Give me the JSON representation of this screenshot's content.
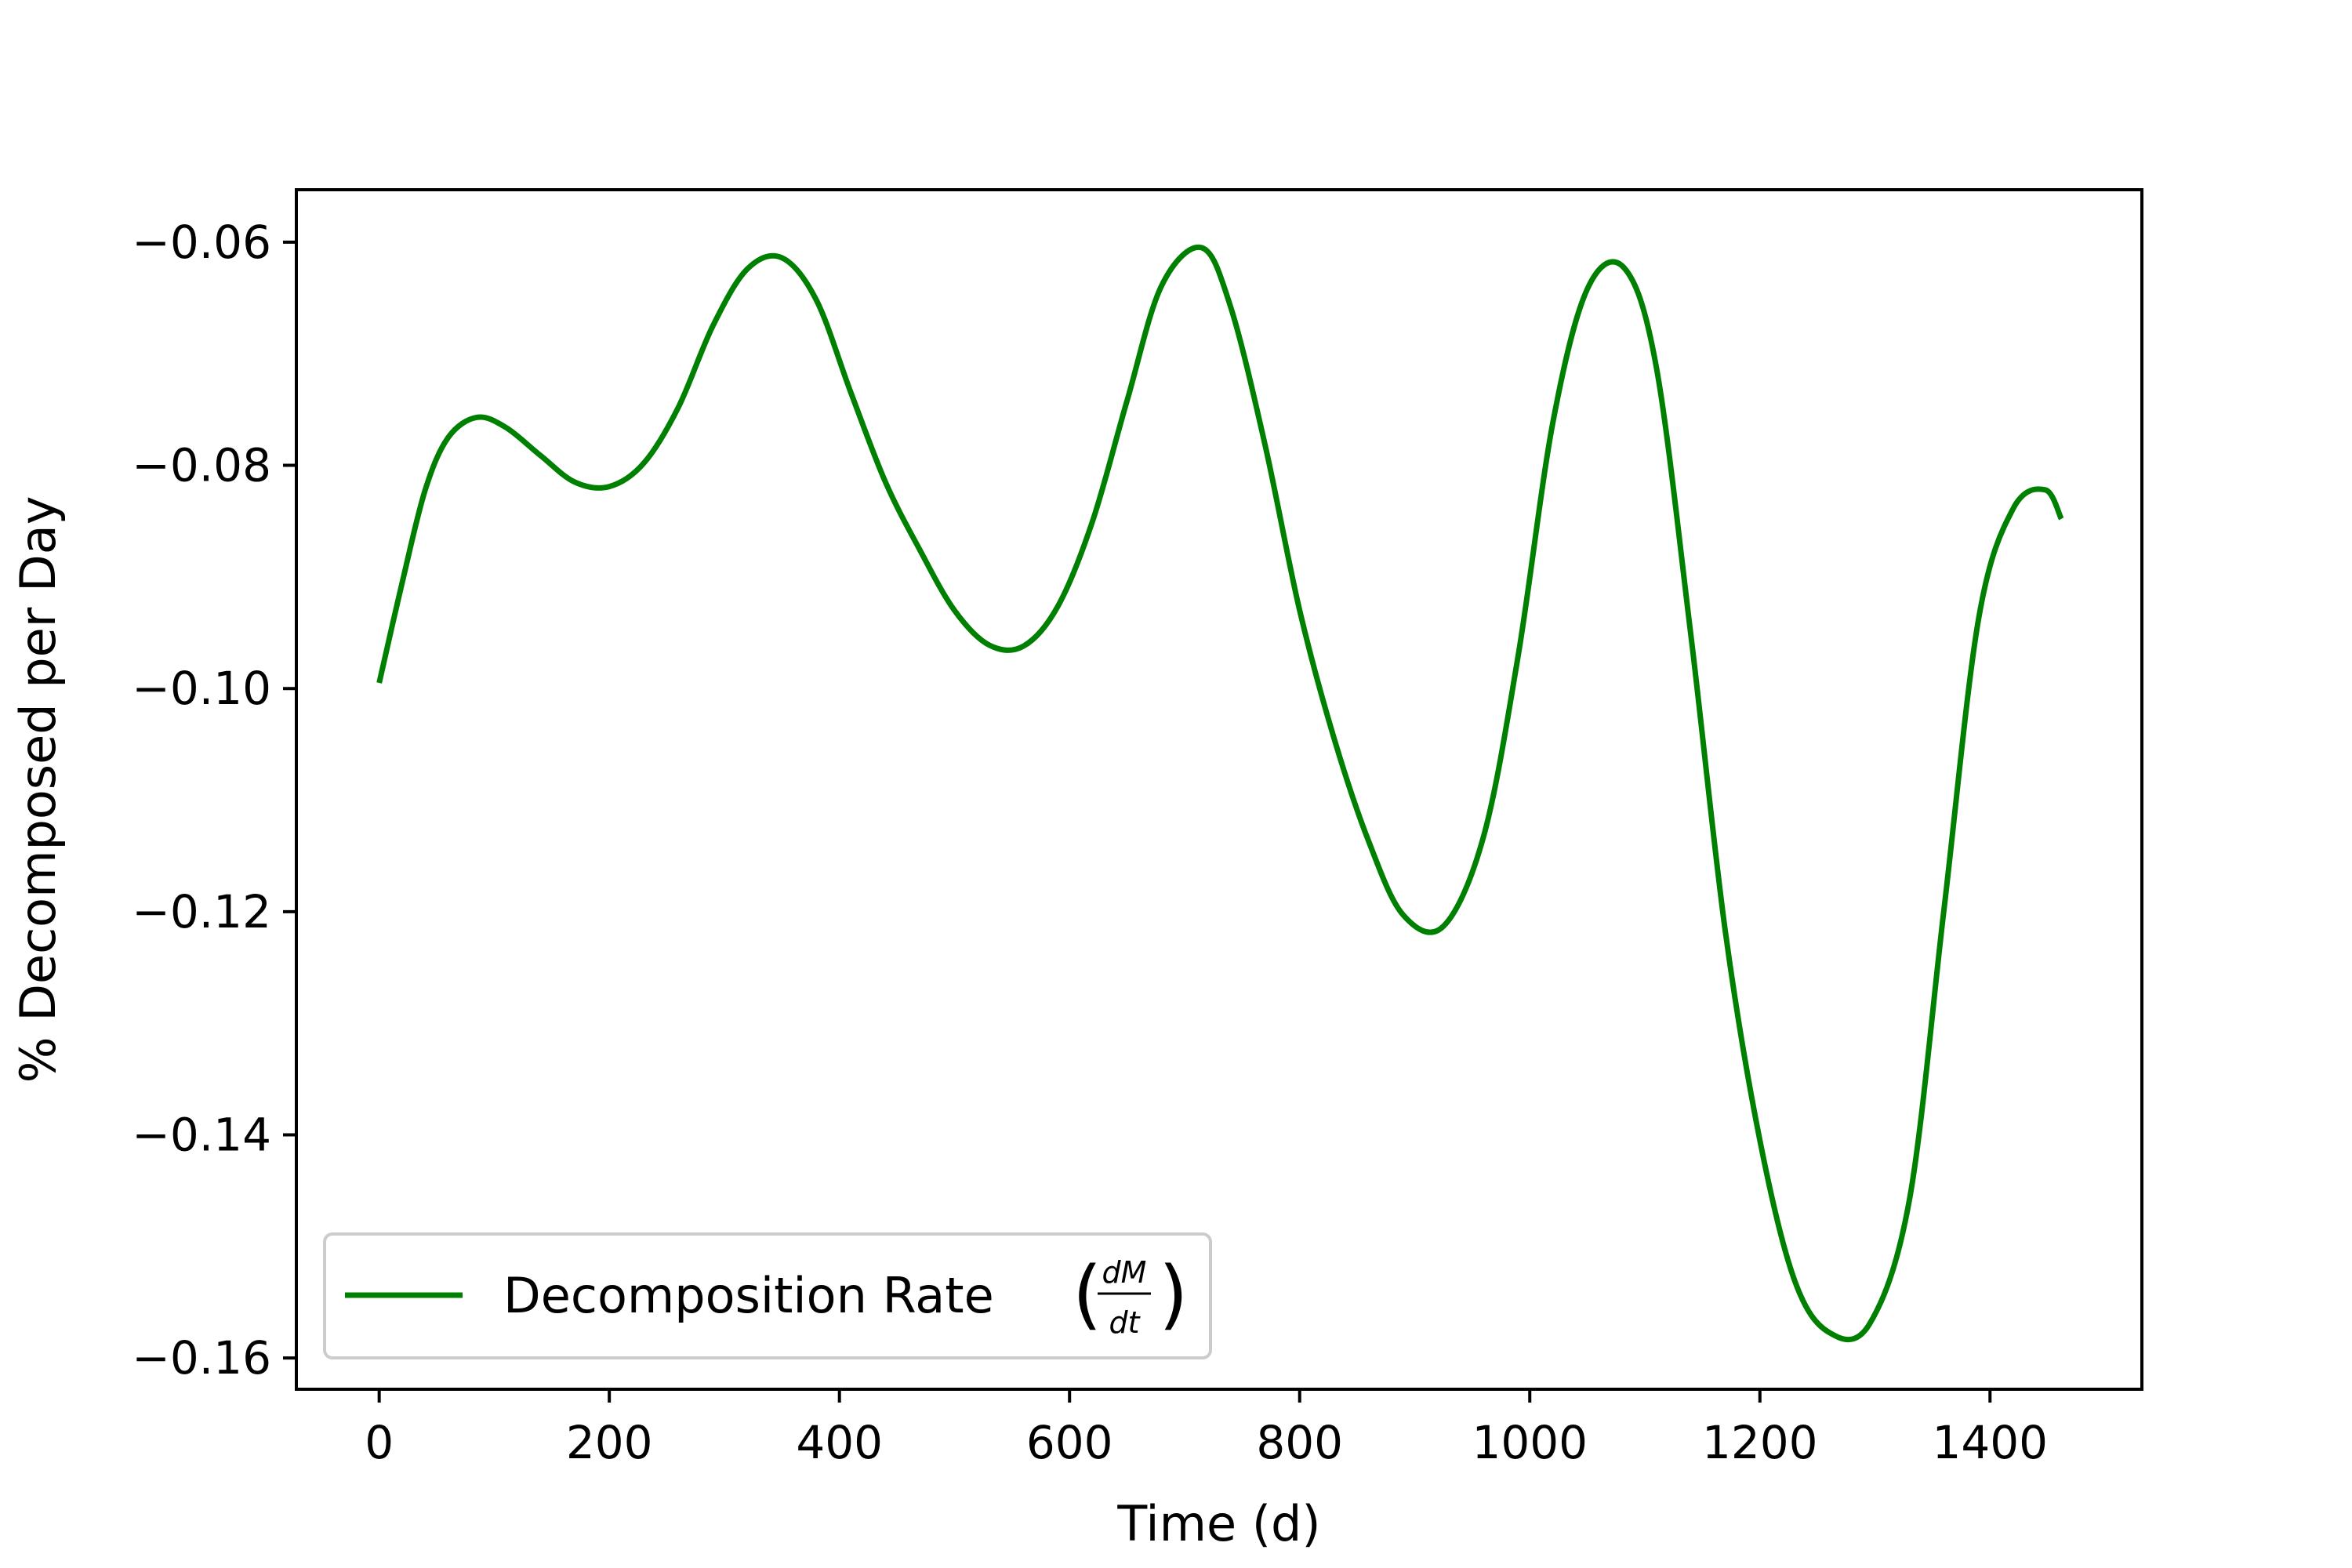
{
  "chart_data": {
    "type": "line",
    "title": "",
    "xlabel": "Time (d)",
    "ylabel": "% Decomposed per Day",
    "xlim": [
      -72,
      1532
    ],
    "ylim": [
      -0.1628,
      -0.0553
    ],
    "xticks": [
      0,
      200,
      400,
      600,
      800,
      1000,
      1200,
      1400
    ],
    "xtick_labels": [
      "0",
      "200",
      "400",
      "600",
      "800",
      "1000",
      "1200",
      "1400"
    ],
    "yticks": [
      -0.06,
      -0.08,
      -0.1,
      -0.12,
      -0.14,
      -0.16
    ],
    "ytick_labels": [
      "−0.06",
      "−0.08",
      "−0.10",
      "−0.12",
      "−0.14",
      "−0.16"
    ],
    "grid": false,
    "legend_position": "lower-left",
    "series": [
      {
        "name": "Decomposition Rate",
        "name_suffix": "dM/dt",
        "color": "#008000",
        "x": [
          0,
          20,
          40,
          60,
          85,
          110,
          140,
          170,
          200,
          230,
          260,
          290,
          320,
          350,
          380,
          410,
          440,
          470,
          500,
          530,
          560,
          590,
          620,
          650,
          680,
          715,
          740,
          770,
          800,
          830,
          860,
          890,
          925,
          960,
          990,
          1020,
          1050,
          1082,
          1110,
          1140,
          1170,
          1200,
          1230,
          1260,
          1295,
          1330,
          1360,
          1390,
          1420,
          1448,
          1462
        ],
        "y": [
          -0.0995,
          -0.0905,
          -0.0822,
          -0.0775,
          -0.0757,
          -0.0766,
          -0.0791,
          -0.0815,
          -0.0819,
          -0.0798,
          -0.0748,
          -0.0675,
          -0.0624,
          -0.0614,
          -0.0652,
          -0.0735,
          -0.0815,
          -0.0876,
          -0.093,
          -0.0961,
          -0.0962,
          -0.0926,
          -0.085,
          -0.0742,
          -0.0639,
          -0.0605,
          -0.0658,
          -0.0782,
          -0.093,
          -0.1045,
          -0.1137,
          -0.1203,
          -0.1213,
          -0.1132,
          -0.097,
          -0.0762,
          -0.0642,
          -0.0623,
          -0.0712,
          -0.0952,
          -0.1218,
          -0.1405,
          -0.153,
          -0.1577,
          -0.157,
          -0.1458,
          -0.1198,
          -0.0938,
          -0.0839,
          -0.0822,
          -0.0848
        ]
      }
    ]
  }
}
